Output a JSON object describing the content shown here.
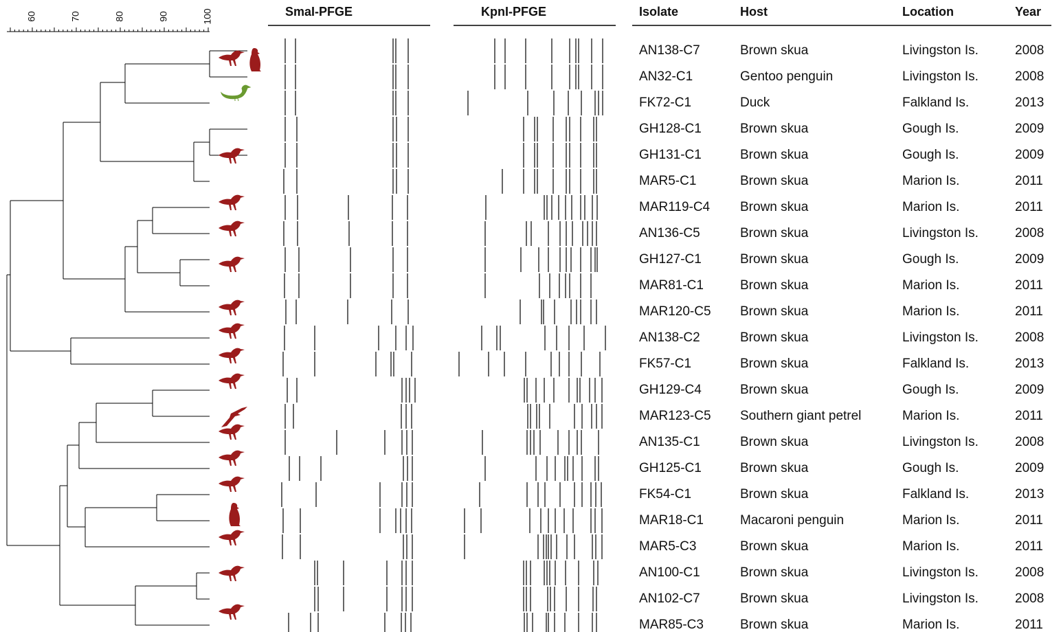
{
  "scale": {
    "ticks": [
      60,
      70,
      80,
      90,
      100
    ]
  },
  "gels": [
    "SmaI-PFGE",
    "KpnI-PFGE"
  ],
  "table": {
    "columns": [
      "Isolate",
      "Host",
      "Location",
      "Year"
    ],
    "rows": [
      [
        "AN138-C7",
        "Brown skua",
        "Livingston Is.",
        "2008"
      ],
      [
        "AN32-C1",
        "Gentoo penguin",
        "Livingston Is.",
        "2008"
      ],
      [
        "FK72-C1",
        "Duck",
        "Falkland Is.",
        "2013"
      ],
      [
        "GH128-C1",
        "Brown skua",
        "Gough Is.",
        "2009"
      ],
      [
        "GH131-C1",
        "Brown skua",
        "Gough Is.",
        "2009"
      ],
      [
        "MAR5-C1",
        "Brown skua",
        "Marion Is.",
        "2011"
      ],
      [
        "MAR119-C4",
        "Brown skua",
        "Marion Is.",
        "2011"
      ],
      [
        "AN136-C5",
        "Brown skua",
        "Livingston Is.",
        "2008"
      ],
      [
        "GH127-C1",
        "Brown skua",
        "Gough Is.",
        "2009"
      ],
      [
        "MAR81-C1",
        "Brown skua",
        "Marion Is.",
        "2011"
      ],
      [
        "MAR120-C5",
        "Brown skua",
        "Marion Is.",
        "2011"
      ],
      [
        "AN138-C2",
        "Brown skua",
        "Livingston Is.",
        "2008"
      ],
      [
        "FK57-C1",
        "Brown skua",
        "Falkland Is.",
        "2013"
      ],
      [
        "GH129-C4",
        "Brown skua",
        "Gough Is.",
        "2009"
      ],
      [
        "MAR123-C5",
        "Southern giant petrel",
        "Marion Is.",
        "2011"
      ],
      [
        "AN135-C1",
        "Brown skua",
        "Livingston Is.",
        "2008"
      ],
      [
        "GH125-C1",
        "Brown skua",
        "Gough Is.",
        "2009"
      ],
      [
        "FK54-C1",
        "Brown skua",
        "Falkland Is.",
        "2013"
      ],
      [
        "MAR18-C1",
        "Macaroni penguin",
        "Marion Is.",
        "2011"
      ],
      [
        "MAR5-C3",
        "Brown skua",
        "Marion Is.",
        "2011"
      ],
      [
        "AN100-C1",
        "Brown skua",
        "Livingston Is.",
        "2008"
      ],
      [
        "AN102-C7",
        "Brown skua",
        "Livingston Is.",
        "2008"
      ],
      [
        "MAR85-C3",
        "Brown skua",
        "Marion Is.",
        "2011"
      ]
    ]
  }
}
